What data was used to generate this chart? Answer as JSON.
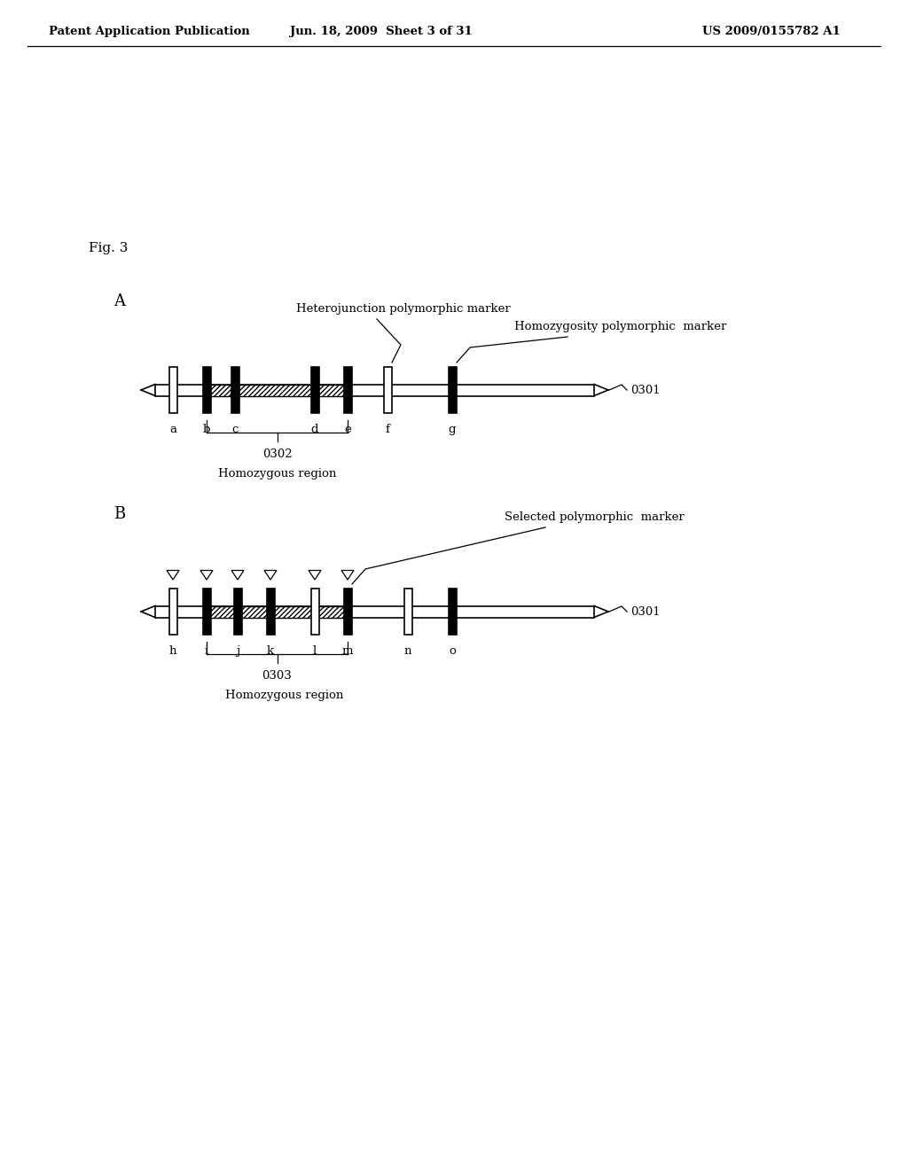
{
  "bg_color": "#ffffff",
  "header_left": "Patent Application Publication",
  "header_mid": "Jun. 18, 2009  Sheet 3 of 31",
  "header_right": "US 2009/0155782 A1",
  "fig_label": "Fig. 3",
  "panel_A_label": "A",
  "panel_B_label": "B",
  "panel_A_title": "Heterojunction polymorphic marker",
  "panel_A_subtitle": "Homozygosity polymorphic  marker",
  "panel_B_title": "Selected polymorphic  marker",
  "chromosome_label_A": "0301",
  "homozygous_label_A": "0302",
  "homozygous_text_A": "Homozygous region",
  "chromosome_label_B": "0301",
  "homozygous_label_B": "0303",
  "homozygous_text_B": "Homozygous region",
  "marker_labels_A": [
    "a",
    "b",
    "c",
    "d",
    "e",
    "f",
    "g"
  ],
  "marker_labels_B": [
    "h",
    "i",
    "j",
    "k",
    "l",
    "m",
    "n",
    "o"
  ]
}
